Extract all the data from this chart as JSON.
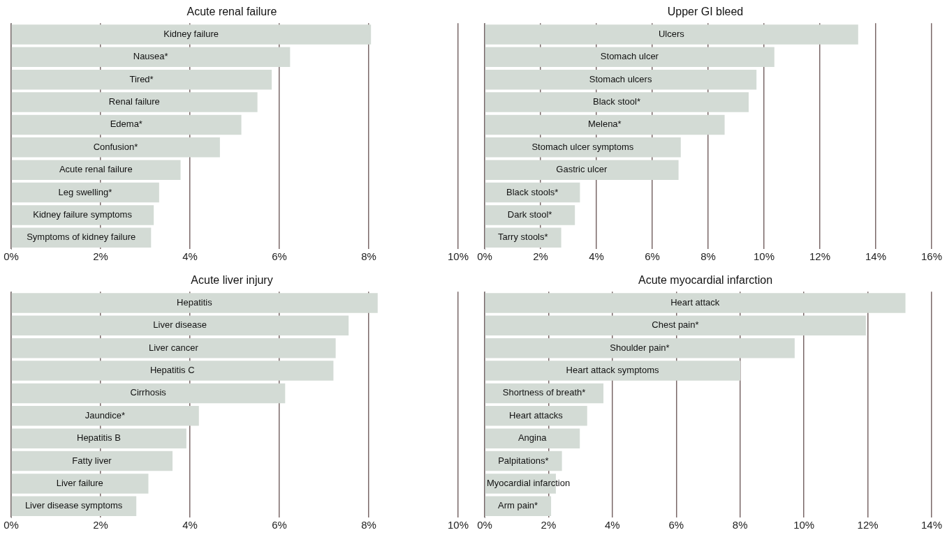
{
  "chart_data": [
    {
      "type": "bar",
      "orientation": "horizontal",
      "title": "Acute renal failure",
      "categories": [
        "Kidney failure",
        "Nausea*",
        "Tired*",
        "Renal failure",
        "Edema*",
        "Confusion*",
        "Acute renal failure",
        "Leg swelling*",
        "Kidney failure symptoms",
        "Symptoms of kidney failure"
      ],
      "values": [
        8.05,
        6.24,
        5.83,
        5.51,
        5.15,
        4.67,
        3.79,
        3.31,
        3.19,
        3.13
      ],
      "color": "#d3dbd5",
      "xlim": [
        0,
        10
      ],
      "xticks": [
        {
          "value": 0,
          "label": "0%"
        },
        {
          "value": 2,
          "label": "2%"
        },
        {
          "value": 4,
          "label": "4%"
        },
        {
          "value": 6,
          "label": "6%"
        },
        {
          "value": 8,
          "label": "8%"
        },
        {
          "value": 10,
          "label": "10%"
        }
      ],
      "grid": "x"
    },
    {
      "type": "bar",
      "orientation": "horizontal",
      "title": "Upper GI bleed",
      "categories": [
        "Ulcers",
        "Stomach ulcer",
        "Stomach ulcers",
        "Black stool*",
        "Melena*",
        "Stomach ulcer symptoms",
        "Gastric ulcer",
        "Black stools*",
        "Dark stool*",
        "Tarry stools*"
      ],
      "values": [
        13.37,
        10.37,
        9.73,
        9.45,
        8.59,
        7.02,
        6.94,
        3.41,
        3.23,
        2.74
      ],
      "color": "#d3dbd5",
      "xlim": [
        0,
        16
      ],
      "xticks": [
        {
          "value": 0,
          "label": "0%"
        },
        {
          "value": 2,
          "label": "2%"
        },
        {
          "value": 4,
          "label": "4%"
        },
        {
          "value": 6,
          "label": "6%"
        },
        {
          "value": 8,
          "label": "8%"
        },
        {
          "value": 10,
          "label": "10%"
        },
        {
          "value": 12,
          "label": "12%"
        },
        {
          "value": 14,
          "label": "14%"
        },
        {
          "value": 16,
          "label": "16%"
        }
      ],
      "grid": "x"
    },
    {
      "type": "bar",
      "orientation": "horizontal",
      "title": "Acute liver injury",
      "categories": [
        "Hepatitis",
        "Liver disease",
        "Liver cancer",
        "Hepatitis C",
        "Cirrhosis",
        "Jaundice*",
        "Hepatitis B",
        "Fatty liver",
        "Liver failure",
        "Liver disease symptoms"
      ],
      "values": [
        8.2,
        7.55,
        7.26,
        7.21,
        6.13,
        4.2,
        3.92,
        3.61,
        3.07,
        2.8
      ],
      "color": "#d3dbd5",
      "xlim": [
        0,
        10
      ],
      "xticks": [
        {
          "value": 0,
          "label": "0%"
        },
        {
          "value": 2,
          "label": "2%"
        },
        {
          "value": 4,
          "label": "4%"
        },
        {
          "value": 6,
          "label": "6%"
        },
        {
          "value": 8,
          "label": "8%"
        },
        {
          "value": 10,
          "label": "10%"
        }
      ],
      "grid": "x"
    },
    {
      "type": "bar",
      "orientation": "horizontal",
      "title": "Acute myocardial infarction",
      "categories": [
        "Heart attack",
        "Chest pain*",
        "Shoulder pain*",
        "Heart attack symptoms",
        "Shortness of breath*",
        "Heart attacks",
        "Angina",
        "Palpitations*",
        "Myocardial infarction",
        "Arm pain*"
      ],
      "values": [
        13.18,
        11.94,
        9.71,
        8.01,
        3.72,
        3.21,
        2.98,
        2.42,
        2.23,
        2.08
      ],
      "color": "#d3dbd5",
      "xlim": [
        0,
        14
      ],
      "xticks": [
        {
          "value": 0,
          "label": "0%"
        },
        {
          "value": 2,
          "label": "2%"
        },
        {
          "value": 4,
          "label": "4%"
        },
        {
          "value": 6,
          "label": "6%"
        },
        {
          "value": 8,
          "label": "8%"
        },
        {
          "value": 10,
          "label": "10%"
        },
        {
          "value": 12,
          "label": "12%"
        },
        {
          "value": 14,
          "label": "14%"
        }
      ],
      "grid": "x"
    }
  ]
}
